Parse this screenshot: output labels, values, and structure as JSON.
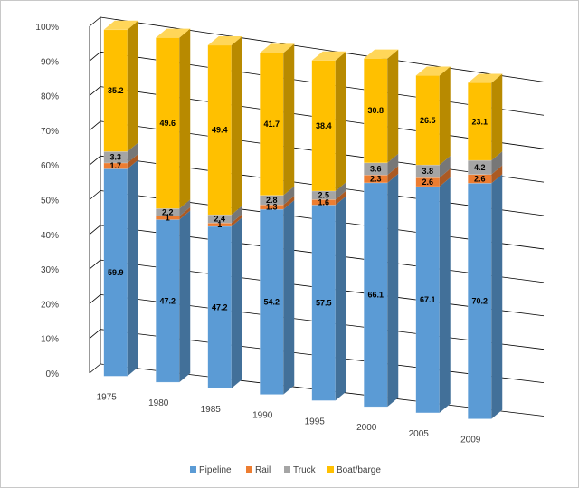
{
  "chart_data": {
    "type": "bar",
    "stacked": true,
    "percent_stacked": true,
    "three_d": true,
    "title": "",
    "xlabel": "",
    "ylabel": "",
    "ylim": [
      0,
      100
    ],
    "y_ticks": [
      "0%",
      "10%",
      "20%",
      "30%",
      "40%",
      "50%",
      "60%",
      "70%",
      "80%",
      "90%",
      "100%"
    ],
    "grid": true,
    "legend_position": "bottom",
    "categories": [
      "1975",
      "1980",
      "1985",
      "1990",
      "1995",
      "2000",
      "2005",
      "2009"
    ],
    "series": [
      {
        "name": "Pipeline",
        "color": "#5b9bd5",
        "values": [
          59.9,
          47.2,
          47.2,
          54.2,
          57.5,
          66.1,
          67.1,
          70.2
        ],
        "labels": [
          "59.9",
          "47.2",
          "47.2",
          "54.2",
          "57.5",
          "66.1",
          "67.1",
          "70.2"
        ]
      },
      {
        "name": "Rail",
        "color": "#ed7d31",
        "values": [
          1.7,
          1,
          1,
          1.3,
          1.6,
          2.3,
          2.6,
          2.6
        ],
        "labels": [
          "1.7",
          "1",
          "1",
          "1.3",
          "1.6",
          "2.3",
          "2.6",
          "2.6"
        ]
      },
      {
        "name": "Truck",
        "color": "#a5a5a5",
        "values": [
          3.3,
          2.2,
          2.4,
          2.8,
          2.5,
          3.6,
          3.8,
          4.2
        ],
        "labels": [
          "3.3",
          "2.2",
          "2.4",
          "2.8",
          "2.5",
          "3.6",
          "3.8",
          "4.2"
        ]
      },
      {
        "name": "Boat/barge",
        "color": "#ffc000",
        "values": [
          35.2,
          49.6,
          49.4,
          41.7,
          38.4,
          30.8,
          26.5,
          23.1
        ],
        "labels": [
          "35.2",
          "49.6",
          "49.4",
          "41.7",
          "38.4",
          "30.8",
          "26.5",
          "23.1"
        ]
      }
    ]
  }
}
